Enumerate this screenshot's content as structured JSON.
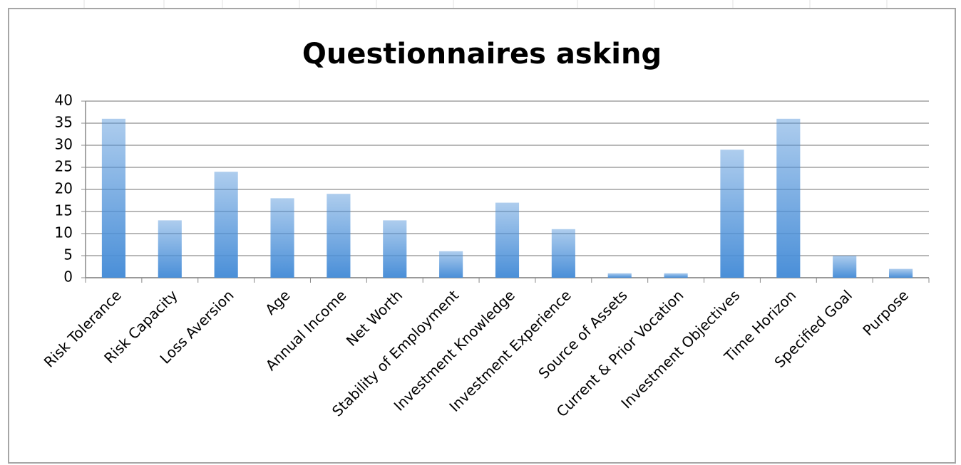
{
  "chart_data": {
    "type": "bar",
    "title": "Questionnaires asking",
    "categories": [
      "Risk Tolerance",
      "Risk Capacity",
      "Loss Aversion",
      "Age",
      "Annual Income",
      "Net Worth",
      "Stability of Employment",
      "Investment Knowledge",
      "Investment Experience",
      "Source of Assets",
      "Current & Prior Vocation",
      "Investment Objectives",
      "Time Horizon",
      "Specified Goal",
      "Purpose"
    ],
    "values": [
      36,
      13,
      24,
      18,
      19,
      13,
      6,
      17,
      11,
      1,
      1,
      29,
      36,
      5,
      2
    ],
    "color": "#4a8fd8",
    "ylim": [
      0,
      40
    ],
    "yticks": [
      0,
      5,
      10,
      15,
      20,
      25,
      30,
      35,
      40
    ],
    "grid": true
  }
}
